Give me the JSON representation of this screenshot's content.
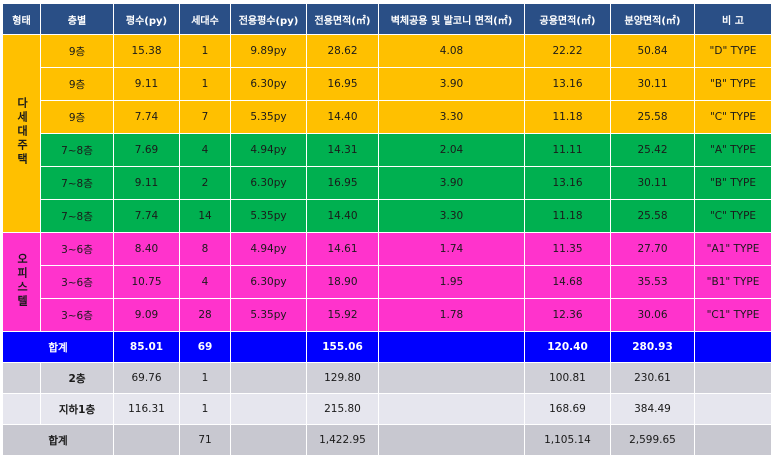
{
  "headers": [
    "형태",
    "층별",
    "평수(py)",
    "세대수",
    "전용평수(py)",
    "전용면적(㎡)",
    "벽체공용 및 발코니 면적(㎡)",
    "공용면적(㎡)",
    "분양면적(㎡)",
    "비 고"
  ],
  "groups": {
    "multi_family": "다세대주택",
    "officetel": "오피스텔"
  },
  "rows": [
    {
      "floor": "9층",
      "py": "15.38",
      "units": "1",
      "excl_py": "9.89py",
      "excl_area": "28.62",
      "wall": "4.08",
      "common": "22.22",
      "sale": "50.84",
      "note": "\"D\" TYPE"
    },
    {
      "floor": "9층",
      "py": "9.11",
      "units": "1",
      "excl_py": "6.30py",
      "excl_area": "16.95",
      "wall": "3.90",
      "common": "13.16",
      "sale": "30.11",
      "note": "\"B\" TYPE"
    },
    {
      "floor": "9층",
      "py": "7.74",
      "units": "7",
      "excl_py": "5.35py",
      "excl_area": "14.40",
      "wall": "3.30",
      "common": "11.18",
      "sale": "25.58",
      "note": "\"C\" TYPE"
    },
    {
      "floor": "7~8층",
      "py": "7.69",
      "units": "4",
      "excl_py": "4.94py",
      "excl_area": "14.31",
      "wall": "2.04",
      "common": "11.11",
      "sale": "25.42",
      "note": "\"A\" TYPE"
    },
    {
      "floor": "7~8층",
      "py": "9.11",
      "units": "2",
      "excl_py": "6.30py",
      "excl_area": "16.95",
      "wall": "3.90",
      "common": "13.16",
      "sale": "30.11",
      "note": "\"B\" TYPE"
    },
    {
      "floor": "7~8층",
      "py": "7.74",
      "units": "14",
      "excl_py": "5.35py",
      "excl_area": "14.40",
      "wall": "3.30",
      "common": "11.18",
      "sale": "25.58",
      "note": "\"C\" TYPE"
    },
    {
      "floor": "3~6층",
      "py": "8.40",
      "units": "8",
      "excl_py": "4.94py",
      "excl_area": "14.61",
      "wall": "1.74",
      "common": "11.35",
      "sale": "27.70",
      "note": "\"A1\" TYPE"
    },
    {
      "floor": "3~6층",
      "py": "10.75",
      "units": "4",
      "excl_py": "6.30py",
      "excl_area": "18.90",
      "wall": "1.95",
      "common": "14.68",
      "sale": "35.53",
      "note": "\"B1\" TYPE"
    },
    {
      "floor": "3~6층",
      "py": "9.09",
      "units": "28",
      "excl_py": "5.35py",
      "excl_area": "15.92",
      "wall": "1.78",
      "common": "12.36",
      "sale": "30.06",
      "note": "\"C1\" TYPE"
    }
  ],
  "subtotal": {
    "label": "합계",
    "py": "85.01",
    "units": "69",
    "excl_area": "155.06",
    "common": "120.40",
    "sale": "280.93"
  },
  "extra_rows": [
    {
      "floor": "2층",
      "py": "69.76",
      "units": "1",
      "excl_area": "129.80",
      "common": "100.81",
      "sale": "230.61"
    },
    {
      "floor": "지하1층",
      "py": "116.31",
      "units": "1",
      "excl_area": "215.80",
      "common": "168.69",
      "sale": "384.49"
    }
  ],
  "total": {
    "label": "합계",
    "units": "71",
    "excl_area": "1,422.95",
    "common": "1,105.14",
    "sale": "2,599.65"
  },
  "colors": {
    "header": "#2a4f86",
    "yellow": "#ffc000",
    "green": "#00b050",
    "pink": "#ff33cc",
    "blue": "#0000ff",
    "gray": "#d0d0d8"
  }
}
